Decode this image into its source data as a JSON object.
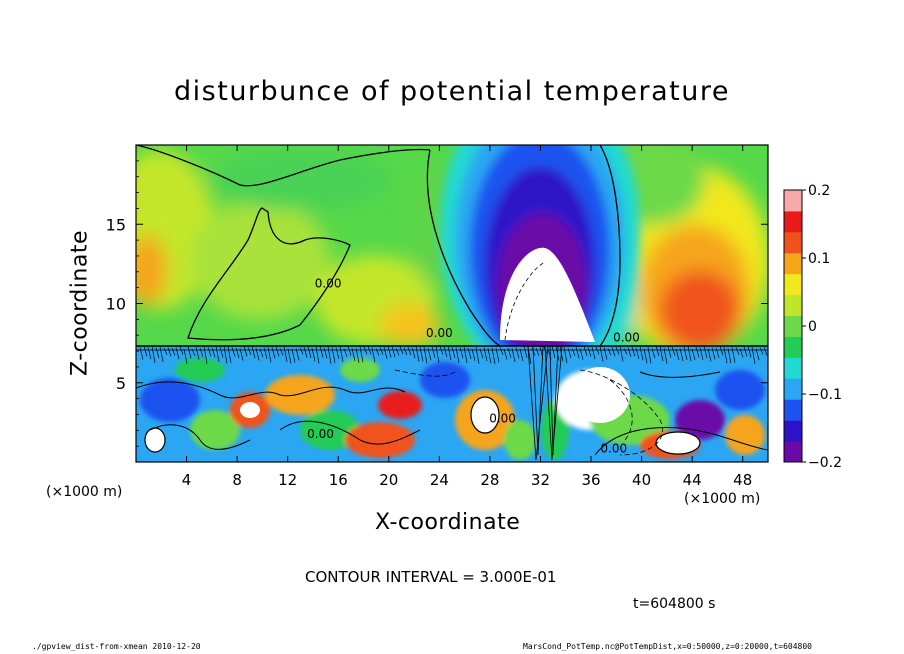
{
  "chart_data": {
    "type": "heatmap",
    "title": "disturbunce of potential temperature",
    "xlabel": "X-coordinate",
    "ylabel": "Z-coordinate",
    "x_units": "(×1000 m)",
    "y_units": "(×1000 m)",
    "xlim": [
      0,
      50
    ],
    "ylim": [
      0,
      20
    ],
    "x_ticks": [
      4,
      8,
      12,
      16,
      20,
      24,
      28,
      32,
      36,
      40,
      44,
      48
    ],
    "y_ticks": [
      5,
      10,
      15
    ],
    "colorbar": {
      "range": [
        -0.2,
        0.2
      ],
      "tick_values": [
        0.2,
        0.1,
        0,
        -0.1,
        -0.2
      ],
      "tick_labels": [
        "0.2",
        "0.1",
        "0",
        "−0.1",
        "−0.2"
      ]
    },
    "contour_labels": [
      {
        "text": "0.00",
        "x": 15.2,
        "z": 11.0
      },
      {
        "text": "0.00",
        "x": 24.0,
        "z": 7.9
      },
      {
        "text": "0.00",
        "x": 38.8,
        "z": 7.6
      },
      {
        "text": "0.00",
        "x": 14.6,
        "z": 1.5
      },
      {
        "text": "0.00",
        "x": 29.0,
        "z": 2.5
      },
      {
        "text": "0.00",
        "x": 37.8,
        "z": 0.6
      }
    ],
    "contour_interval": "CONTOUR INTERVAL = 3.000E-01",
    "time": "t=604800 s",
    "grid": false
  },
  "footer": {
    "left": "./gpview_dist-from-xmean  2010-12-20",
    "right": "MarsCond_PotTemp.nc@PotTempDist,x=0:50000,z=0:20000,t=604800"
  },
  "colors": {
    "colorbar_stops": [
      "#6a0aa8",
      "#2e12c8",
      "#1f53f0",
      "#2aa6f2",
      "#24d9d2",
      "#22cc55",
      "#6cd94a",
      "#bfe62a",
      "#f2e81e",
      "#f5a51a",
      "#f0521b",
      "#e81a1a",
      "#f7a8a8"
    ]
  }
}
